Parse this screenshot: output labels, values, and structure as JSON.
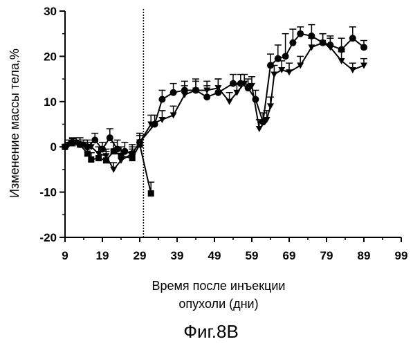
{
  "chart_data": {
    "type": "line",
    "title": "",
    "xlabel_line1": "Время после инъекции",
    "xlabel_line2": "опухоли (дни)",
    "ylabel": "Изменение массы тела,%",
    "caption": "Фиг.8В",
    "xlim": [
      9,
      99
    ],
    "ylim": [
      -20,
      30
    ],
    "x_ticks": [
      9,
      19,
      29,
      39,
      49,
      59,
      69,
      79,
      89,
      99
    ],
    "y_ticks": [
      -20,
      -10,
      0,
      10,
      20,
      30
    ],
    "vline_x": 30,
    "grid": false,
    "legend": "none",
    "series": [
      {
        "marker": "square",
        "x": [
          9,
          11,
          13,
          15,
          16,
          18,
          20,
          22,
          24,
          27,
          29,
          32
        ],
        "y": [
          0,
          0.8,
          0.5,
          -1.5,
          -2.8,
          -2.5,
          -3.0,
          -1.0,
          -2.0,
          -2.5,
          0.5,
          -10.3
        ],
        "err": [
          0.5,
          1,
          1.5,
          1.5,
          1.5,
          1.5,
          2,
          2,
          2,
          2,
          2,
          2.5
        ]
      },
      {
        "marker": "triangle-down",
        "x": [
          9,
          10,
          12,
          14,
          16,
          18,
          20,
          22,
          24,
          27,
          29,
          32,
          35,
          38,
          41,
          44,
          47,
          50,
          53,
          55,
          57,
          59,
          61,
          63,
          64,
          65,
          67,
          69,
          72,
          75,
          78,
          80,
          83,
          86,
          89
        ],
        "y": [
          0,
          0.5,
          1.0,
          0.5,
          0.0,
          -1.5,
          -2.0,
          -5.0,
          -3.0,
          -1.5,
          1.0,
          5.0,
          6.0,
          7.0,
          11.5,
          12.5,
          12.5,
          13.0,
          10.0,
          12.0,
          14.0,
          13.5,
          4.0,
          6.0,
          9.0,
          16.0,
          17.0,
          16.5,
          18.0,
          22.0,
          23.0,
          22.0,
          19.0,
          17.0,
          18.0
        ],
        "err": [
          0.5,
          1,
          1,
          1,
          1,
          1.5,
          1.5,
          1.5,
          1.5,
          1.5,
          2,
          2,
          2,
          2,
          2,
          2,
          2,
          2,
          2,
          2,
          2,
          2,
          2,
          2,
          2,
          2,
          2,
          2,
          2,
          2,
          2,
          2,
          2,
          1.5,
          1.5
        ]
      },
      {
        "marker": "circle",
        "x": [
          9,
          11,
          13,
          15,
          17,
          19,
          21,
          23,
          25,
          27,
          29,
          33,
          35,
          38,
          41,
          44,
          47,
          50,
          54,
          56,
          58,
          60,
          62,
          64,
          66,
          68,
          70,
          72,
          75,
          78,
          80,
          83,
          86,
          89
        ],
        "y": [
          0,
          1.0,
          0.5,
          0.0,
          1.5,
          -0.5,
          2.0,
          -0.5,
          -1.0,
          -1.5,
          1.0,
          5.0,
          10.5,
          12.0,
          12.5,
          12.5,
          11.0,
          12.0,
          14.0,
          14.0,
          13.0,
          10.5,
          5.5,
          18.0,
          19.5,
          20.0,
          23.0,
          25.0,
          24.5,
          23.0,
          22.5,
          21.5,
          24.0,
          22.0
        ],
        "err": [
          0.5,
          1,
          1.5,
          1.5,
          1.5,
          1.5,
          2,
          2,
          2,
          2,
          2,
          2,
          2,
          2,
          2,
          2.5,
          2.5,
          3,
          2,
          2,
          2,
          2,
          2,
          2.5,
          3,
          5,
          3,
          1.5,
          2.5,
          2,
          2,
          2.5,
          2.5,
          1.5
        ]
      }
    ]
  }
}
